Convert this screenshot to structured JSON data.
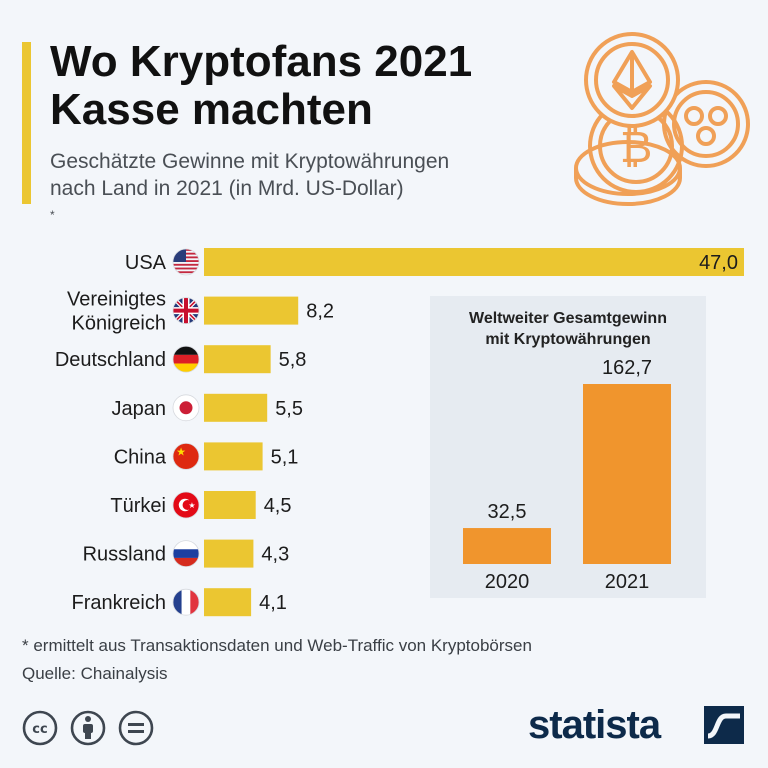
{
  "header": {
    "title_line1": "Wo Kryptofans 2021",
    "title_line2": "Kasse machten",
    "subtitle_line1": "Geschätzte Gewinne mit Kryptowährungen",
    "subtitle_line2": "nach Land in 2021 (in Mrd. US-Dollar)",
    "subtitle_mark": "*"
  },
  "colors": {
    "bar": "#ebc631",
    "inset_bar": "#f0952d",
    "accent": "#ebc631",
    "coin": "#f0a057"
  },
  "chart_data": [
    {
      "type": "bar",
      "orientation": "horizontal",
      "categories": [
        "USA",
        "Vereinigtes Königreich",
        "Deutschland",
        "Japan",
        "China",
        "Türkei",
        "Russland",
        "Frankreich"
      ],
      "category_lines": [
        [
          "USA"
        ],
        [
          "Vereinigtes",
          "Königreich"
        ],
        [
          "Deutschland"
        ],
        [
          "Japan"
        ],
        [
          "China"
        ],
        [
          "Türkei"
        ],
        [
          "Russland"
        ],
        [
          "Frankreich"
        ]
      ],
      "values": [
        47.0,
        8.2,
        5.8,
        5.5,
        5.1,
        4.5,
        4.3,
        4.1
      ],
      "value_labels": [
        "47,0",
        "8,2",
        "5,8",
        "5,5",
        "5,1",
        "4,5",
        "4,3",
        "4,1"
      ],
      "flags": [
        "us-flag",
        "uk-flag",
        "germany-flag",
        "japan-flag",
        "china-flag",
        "turkey-flag",
        "russia-flag",
        "france-flag"
      ],
      "xlim": [
        0,
        47.0
      ]
    },
    {
      "type": "bar",
      "title_line1": "Weltweiter Gesamtgewinn",
      "title_line2": "mit Kryptowährungen",
      "categories": [
        "2020",
        "2021"
      ],
      "values": [
        32.5,
        162.7
      ],
      "value_labels": [
        "32,5",
        "162,7"
      ],
      "ylim": [
        0,
        162.7
      ]
    }
  ],
  "footer": {
    "footnote": "* ermittelt aus Transaktionsdaten und Web-Traffic von Kryptobörsen",
    "source": "Quelle: Chainalysis",
    "license_icons": [
      "cc-icon",
      "by-icon",
      "nd-icon"
    ],
    "logo": "statista"
  }
}
